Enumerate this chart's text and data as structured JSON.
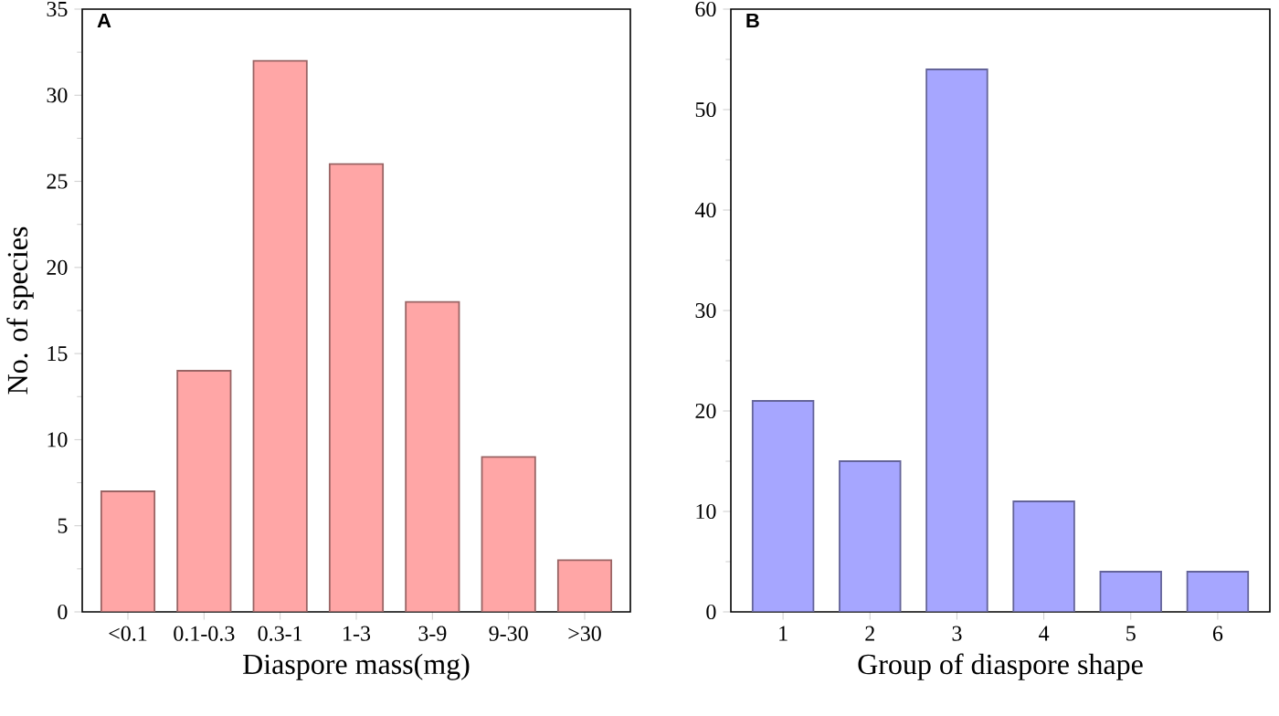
{
  "chart_data": [
    {
      "type": "bar",
      "title": "A",
      "xlabel": "Diaspore mass(mg)",
      "ylabel": "No. of species",
      "categories": [
        "<0.1",
        "0.1-0.3",
        "0.3-1",
        "1-3",
        "3-9",
        "9-30",
        ">30"
      ],
      "values": [
        7,
        14,
        32,
        26,
        18,
        9,
        3
      ],
      "color": "#ffa6a6",
      "ylim": [
        0,
        35
      ],
      "yticks": [
        0,
        5,
        10,
        15,
        20,
        25,
        30,
        35
      ]
    },
    {
      "type": "bar",
      "title": "B",
      "xlabel": "Group of diaspore shape",
      "categories": [
        "1",
        "2",
        "3",
        "4",
        "5",
        "6"
      ],
      "values": [
        21,
        15,
        54,
        11,
        4,
        4
      ],
      "color": "#a6a6ff",
      "ylim": [
        0,
        60
      ],
      "yticks": [
        0,
        10,
        20,
        30,
        40,
        50,
        60
      ]
    }
  ]
}
